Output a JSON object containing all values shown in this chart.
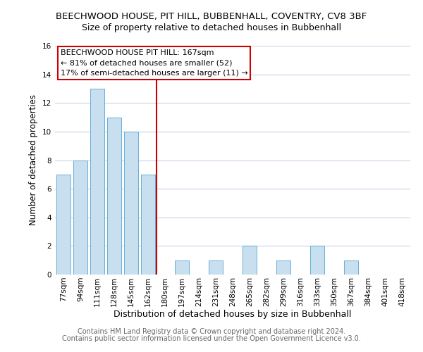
{
  "title": "BEECHWOOD HOUSE, PIT HILL, BUBBENHALL, COVENTRY, CV8 3BF",
  "subtitle": "Size of property relative to detached houses in Bubbenhall",
  "xlabel": "Distribution of detached houses by size in Bubbenhall",
  "ylabel": "Number of detached properties",
  "bin_labels": [
    "77sqm",
    "94sqm",
    "111sqm",
    "128sqm",
    "145sqm",
    "162sqm",
    "180sqm",
    "197sqm",
    "214sqm",
    "231sqm",
    "248sqm",
    "265sqm",
    "282sqm",
    "299sqm",
    "316sqm",
    "333sqm",
    "350sqm",
    "367sqm",
    "384sqm",
    "401sqm",
    "418sqm"
  ],
  "bar_values": [
    7,
    8,
    13,
    11,
    10,
    7,
    0,
    1,
    0,
    1,
    0,
    2,
    0,
    1,
    0,
    2,
    0,
    1,
    0,
    0,
    0
  ],
  "bar_color": "#c8dff0",
  "bar_edge_color": "#6aafd6",
  "vline_x": 6.0,
  "vline_color": "#cc0000",
  "annotation_title": "BEECHWOOD HOUSE PIT HILL: 167sqm",
  "annotation_line1": "← 81% of detached houses are smaller (52)",
  "annotation_line2": "17% of semi-detached houses are larger (11) →",
  "annotation_box_color": "#ffffff",
  "annotation_box_edgecolor": "#cc0000",
  "ylim": [
    0,
    16
  ],
  "yticks": [
    0,
    2,
    4,
    6,
    8,
    10,
    12,
    14,
    16
  ],
  "footer1": "Contains HM Land Registry data © Crown copyright and database right 2024.",
  "footer2": "Contains public sector information licensed under the Open Government Licence v3.0.",
  "background_color": "#ffffff",
  "grid_color": "#c8d4e4",
  "title_fontsize": 9.5,
  "subtitle_fontsize": 9,
  "xlabel_fontsize": 9,
  "ylabel_fontsize": 8.5,
  "tick_fontsize": 7.5,
  "footer_fontsize": 7,
  "annotation_fontsize": 8
}
